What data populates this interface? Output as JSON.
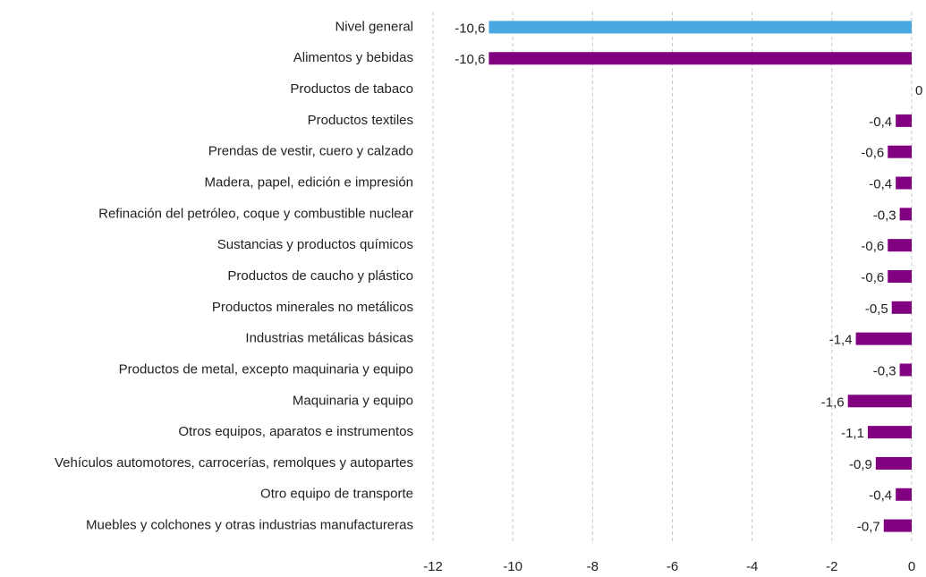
{
  "chart_data": {
    "type": "barh",
    "categories": [
      "Nivel general",
      "Alimentos y bebidas",
      "Productos de tabaco",
      "Productos textiles",
      "Prendas de vestir, cuero y calzado",
      "Madera, papel, edición e impresión",
      "Refinación del petróleo, coque y combustible nuclear",
      "Sustancias y productos químicos",
      "Productos de caucho y plástico",
      "Productos minerales no metálicos",
      "Industrias metálicas básicas",
      "Productos de metal, excepto maquinaria y equipo",
      "Maquinaria y equipo",
      "Otros equipos, aparatos e instrumentos",
      "Vehículos automotores, carrocerías, remolques y autopartes",
      "Otro equipo de transporte",
      "Muebles y colchones y otras industrias manufactureras"
    ],
    "values": [
      -10.6,
      -10.6,
      0,
      -0.4,
      -0.6,
      -0.4,
      -0.3,
      -0.6,
      -0.6,
      -0.5,
      -1.4,
      -0.3,
      -1.6,
      -1.1,
      -0.9,
      -0.4,
      -0.7
    ],
    "value_labels": [
      "-10,6",
      "-10,6",
      "0",
      "-0,4",
      "-0,6",
      "-0,4",
      "-0,3",
      "-0,6",
      "-0,6",
      "-0,5",
      "-1,4",
      "-0,3",
      "-1,6",
      "-1,1",
      "-0,9",
      "-0,4",
      "-0,7"
    ],
    "colors": [
      "#4aa8e0",
      "#800080",
      "#800080",
      "#800080",
      "#800080",
      "#800080",
      "#800080",
      "#800080",
      "#800080",
      "#800080",
      "#800080",
      "#800080",
      "#800080",
      "#800080",
      "#800080",
      "#800080",
      "#800080"
    ],
    "xlim": [
      -12,
      0
    ],
    "xticks": [
      -12,
      -10,
      -8,
      -6,
      -4,
      -2,
      0
    ],
    "grid": true
  }
}
